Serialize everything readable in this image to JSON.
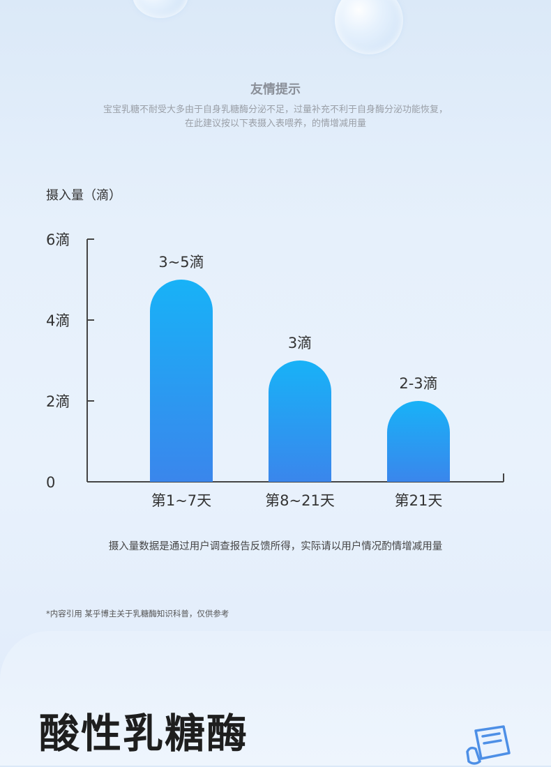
{
  "tip": {
    "title": "友情提示",
    "line1": "宝宝乳糖不耐受大多由于自身乳糖酶分泌不足，过量补充不利于自身酶分泌功能恢复，",
    "line2": "在此建议按以下表摄入表喂养，的情增减用量"
  },
  "note": "摄入量数据是通过用户调查报告反馈所得，实际请以用户情况酌情增减用量",
  "citation": "*内容引用 某乎博主关于乳糖酶知识科普，仅供参考",
  "section_title": "酸性乳糖酶",
  "colors": {
    "bar_top": "#18b2f7",
    "bar_bottom": "#3a86ec",
    "axis": "#444444"
  },
  "chart_data": {
    "type": "bar",
    "ylabel": "摄入量（滴）",
    "categories": [
      "第1~7天",
      "第8~21天",
      "第21天"
    ],
    "values": [
      5,
      3,
      2
    ],
    "data_labels": [
      "3~5滴",
      "3滴",
      "2-3滴"
    ],
    "ylim": [
      0,
      6
    ],
    "yticks": [
      0,
      2,
      4,
      6
    ],
    "ytick_labels": [
      "0",
      "2滴",
      "4滴",
      "6滴"
    ],
    "grid": false
  }
}
